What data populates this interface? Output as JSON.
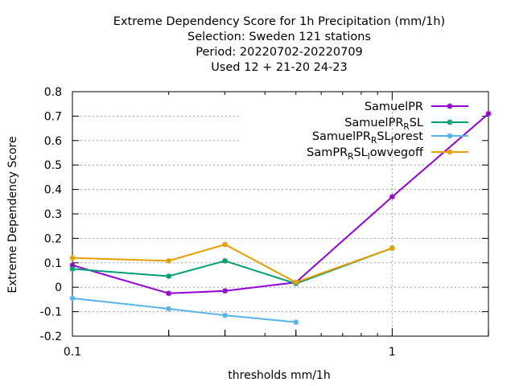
{
  "chart_data": {
    "type": "line",
    "title_lines": [
      "Extreme Dependency Score  for 1h Precipitation (mm/1h)",
      "Selection: Sweden     121 stations",
      "Period: 20220702-20220709",
      "Used  12 + 21-20 24-23"
    ],
    "xlabel": "thresholds mm/1h",
    "ylabel": "Extreme Dependency Score",
    "xscale": "log",
    "xlim": [
      0.1,
      2
    ],
    "ylim": [
      -0.2,
      0.8
    ],
    "xticks": [
      {
        "value": 0.1,
        "label": "0.1"
      },
      {
        "value": 1,
        "label": "1"
      }
    ],
    "yticks": [
      {
        "value": 0.8,
        "label": "0.8"
      },
      {
        "value": 0.7,
        "label": "0.7"
      },
      {
        "value": 0.6,
        "label": "0.6"
      },
      {
        "value": 0.5,
        "label": "0.5"
      },
      {
        "value": 0.4,
        "label": "0.4"
      },
      {
        "value": 0.3,
        "label": "0.3"
      },
      {
        "value": 0.2,
        "label": "0.2"
      },
      {
        "value": 0.1,
        "label": "0.1"
      },
      {
        "value": 0,
        "label": "0"
      },
      {
        "value": -0.1,
        "label": "-0.1"
      },
      {
        "value": -0.2,
        "label": "-0.2"
      }
    ],
    "grid": true,
    "legend_position": "top-right",
    "series": [
      {
        "name": "SamuelPR",
        "name_parts": [
          {
            "t": "SamuelPR",
            "s": ""
          }
        ],
        "color": "#9400d3",
        "points": [
          [
            0.1,
            0.09
          ],
          [
            0.2,
            -0.025
          ],
          [
            0.3,
            -0.015
          ],
          [
            0.5,
            0.02
          ],
          [
            1.0,
            0.37
          ],
          [
            2.0,
            0.71
          ]
        ]
      },
      {
        "name": "SamuelPR_RSL",
        "name_parts": [
          {
            "t": "SamuelPR",
            "s": ""
          },
          {
            "t": "R",
            "s": "sub"
          },
          {
            "t": "SL",
            "s": ""
          }
        ],
        "color": "#009e73",
        "points": [
          [
            0.1,
            0.075
          ],
          [
            0.2,
            0.045
          ],
          [
            0.3,
            0.108
          ],
          [
            0.5,
            0.015
          ],
          [
            1.0,
            0.16
          ]
        ]
      },
      {
        "name": "SamuelPR_RSL_forest",
        "name_parts": [
          {
            "t": "SamuelPR",
            "s": ""
          },
          {
            "t": "R",
            "s": "sub"
          },
          {
            "t": "SL",
            "s": ""
          },
          {
            "t": "f",
            "s": "sub"
          },
          {
            "t": "orest",
            "s": ""
          }
        ],
        "color": "#56b4e9",
        "points": [
          [
            0.1,
            -0.045
          ],
          [
            0.2,
            -0.088
          ],
          [
            0.3,
            -0.115
          ],
          [
            0.5,
            -0.143
          ]
        ]
      },
      {
        "name": "SamPR_RSL_lowvegoff",
        "name_parts": [
          {
            "t": "SamPR",
            "s": ""
          },
          {
            "t": "R",
            "s": "sub"
          },
          {
            "t": "SL",
            "s": ""
          },
          {
            "t": "l",
            "s": "sub"
          },
          {
            "t": "owvegoff",
            "s": ""
          }
        ],
        "color": "#e69f00",
        "points": [
          [
            0.1,
            0.12
          ],
          [
            0.2,
            0.108
          ],
          [
            0.3,
            0.175
          ],
          [
            0.5,
            0.02
          ],
          [
            1.0,
            0.16
          ]
        ]
      }
    ]
  }
}
